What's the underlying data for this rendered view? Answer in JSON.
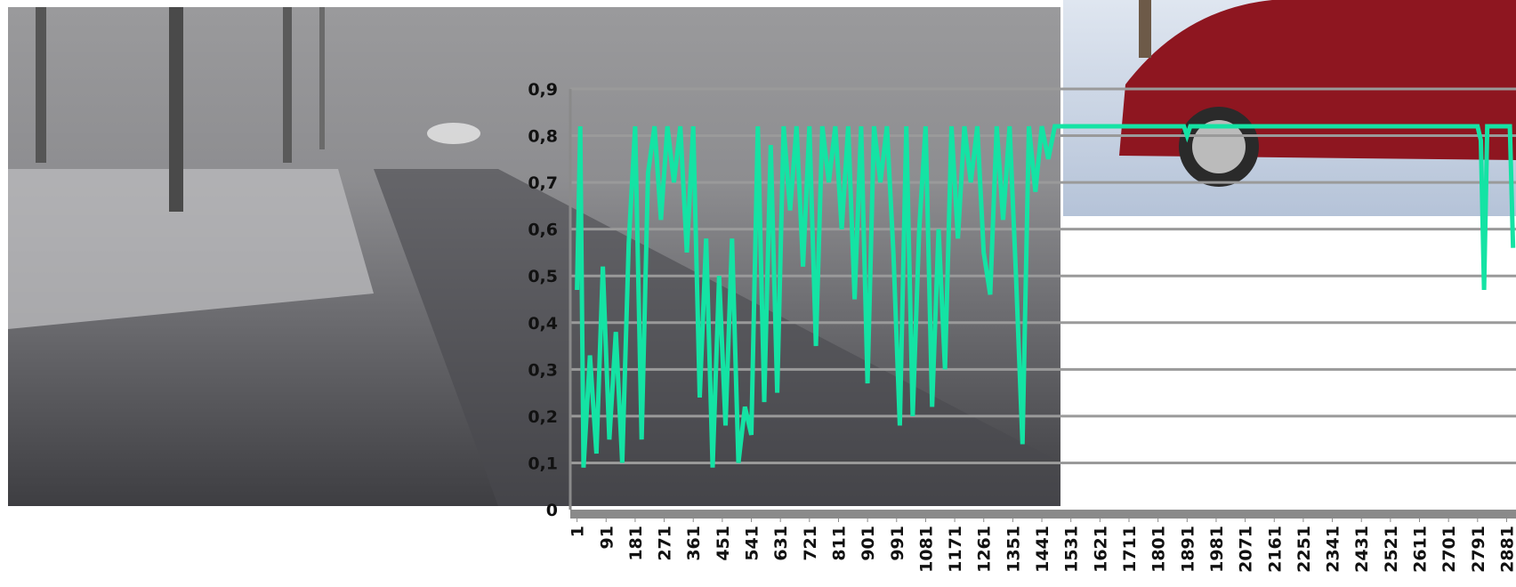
{
  "chart_data": {
    "type": "line",
    "x": [
      1,
      11,
      21,
      41,
      61,
      81,
      101,
      121,
      141,
      161,
      181,
      201,
      221,
      241,
      261,
      281,
      301,
      321,
      341,
      361,
      381,
      401,
      421,
      441,
      461,
      481,
      501,
      521,
      541,
      561,
      581,
      601,
      621,
      641,
      661,
      681,
      701,
      721,
      741,
      761,
      781,
      801,
      821,
      841,
      861,
      881,
      901,
      921,
      941,
      961,
      981,
      1001,
      1021,
      1041,
      1061,
      1081,
      1101,
      1121,
      1141,
      1161,
      1181,
      1201,
      1221,
      1241,
      1261,
      1281,
      1301,
      1321,
      1341,
      1361,
      1381,
      1401,
      1421,
      1441,
      1461,
      1481,
      1881,
      1891,
      1901,
      2791,
      2801,
      2811,
      2821,
      2891,
      2901
    ],
    "series": [
      {
        "color": "#14e3a4",
        "values": [
          0.47,
          0.82,
          0.09,
          0.33,
          0.12,
          0.52,
          0.15,
          0.38,
          0.1,
          0.57,
          0.82,
          0.15,
          0.72,
          0.82,
          0.62,
          0.82,
          0.7,
          0.82,
          0.55,
          0.82,
          0.24,
          0.58,
          0.09,
          0.5,
          0.18,
          0.58,
          0.1,
          0.22,
          0.16,
          0.82,
          0.23,
          0.78,
          0.25,
          0.82,
          0.64,
          0.82,
          0.52,
          0.82,
          0.35,
          0.82,
          0.7,
          0.82,
          0.6,
          0.82,
          0.45,
          0.82,
          0.27,
          0.82,
          0.7,
          0.82,
          0.55,
          0.18,
          0.82,
          0.2,
          0.6,
          0.82,
          0.22,
          0.6,
          0.3,
          0.82,
          0.58,
          0.82,
          0.7,
          0.82,
          0.55,
          0.46,
          0.82,
          0.62,
          0.82,
          0.5,
          0.14,
          0.82,
          0.68,
          0.82,
          0.75,
          0.82,
          0.82,
          0.8,
          0.82,
          0.82,
          0.79,
          0.47,
          0.82,
          0.82,
          0.56
        ]
      }
    ],
    "xlim": [
      -20,
      2910
    ],
    "xticks": [
      1,
      91,
      181,
      271,
      361,
      451,
      541,
      631,
      721,
      811,
      901,
      991,
      1081,
      1171,
      1261,
      1351,
      1441,
      1531,
      1621,
      1711,
      1801,
      1891,
      1981,
      2071,
      2161,
      2251,
      2341,
      2431,
      2521,
      2611,
      2701,
      2791,
      2881
    ],
    "ylim": [
      0,
      0.9
    ],
    "yticks": [
      0,
      {
        "value": 0.1,
        "label": "0,1"
      },
      {
        "value": 0.2,
        "label": "0,2"
      },
      {
        "value": 0.3,
        "label": "0,3"
      },
      {
        "value": 0.4,
        "label": "0,4"
      },
      {
        "value": 0.5,
        "label": "0,5"
      },
      {
        "value": 0.6,
        "label": "0,6"
      },
      {
        "value": 0.7,
        "label": "0,7"
      },
      {
        "value": 0.8,
        "label": "0,8"
      },
      {
        "value": 0.9,
        "label": "0,9"
      }
    ],
    "grid": true
  }
}
